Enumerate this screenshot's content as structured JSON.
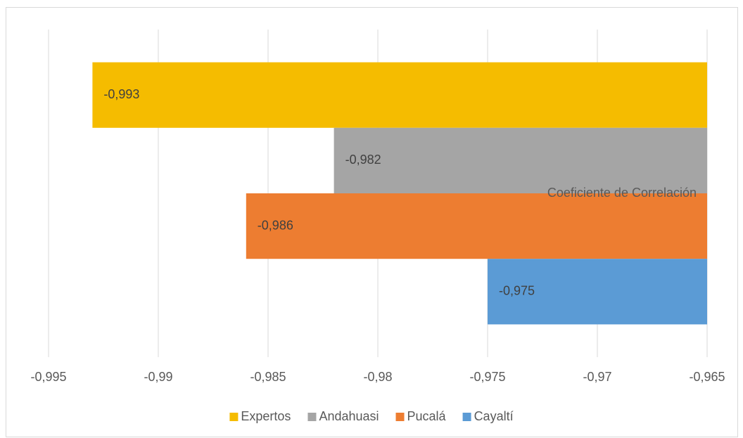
{
  "chart_data": {
    "type": "bar",
    "orientation": "horizontal",
    "categories": [
      "Coeficiente de Correlación"
    ],
    "series": [
      {
        "name": "Expertos",
        "color": "#f5bc00",
        "values": [
          -0.993
        ],
        "value_labels": [
          "-0,993"
        ]
      },
      {
        "name": "Andahuasi",
        "color": "#a5a5a5",
        "values": [
          -0.982
        ],
        "value_labels": [
          "-0,982"
        ]
      },
      {
        "name": "Pucalá",
        "color": "#ed7d31",
        "values": [
          -0.986
        ],
        "value_labels": [
          "-0,986"
        ]
      },
      {
        "name": "Cayaltí",
        "color": "#5b9bd5",
        "values": [
          -0.975
        ],
        "value_labels": [
          "-0,975"
        ]
      }
    ],
    "xlim": [
      -0.995,
      -0.965
    ],
    "xticks": [
      {
        "value": -0.995,
        "label": "-0,995"
      },
      {
        "value": -0.99,
        "label": "-0,99"
      },
      {
        "value": -0.985,
        "label": "-0,985"
      },
      {
        "value": -0.98,
        "label": "-0,98"
      },
      {
        "value": -0.975,
        "label": "-0,975"
      },
      {
        "value": -0.97,
        "label": "-0,97"
      },
      {
        "value": -0.965,
        "label": "-0,965"
      }
    ],
    "grid": true,
    "legend": "bottom"
  }
}
